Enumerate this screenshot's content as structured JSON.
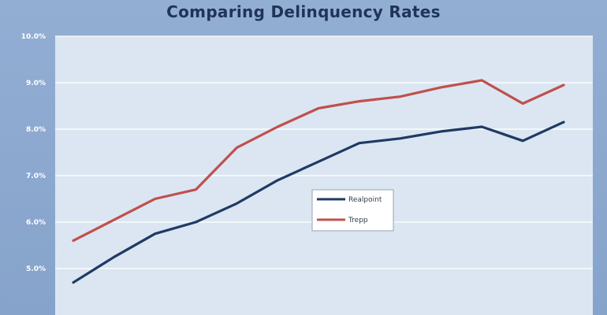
{
  "chart_data": {
    "type": "line",
    "title": "Comparing Delinquency Rates",
    "xlabel": "",
    "ylabel": "",
    "ylim": [
      4.0,
      10.0
    ],
    "yticks": [
      "5.0%",
      "6.0%",
      "7.0%",
      "8.0%",
      "9.0%",
      "10.0%"
    ],
    "ytick_values": [
      5.0,
      6.0,
      7.0,
      8.0,
      9.0,
      10.0
    ],
    "x": [
      1,
      2,
      3,
      4,
      5,
      6,
      7,
      8,
      9,
      10,
      11,
      12,
      13,
      14
    ],
    "series": [
      {
        "name": "Realpoint",
        "color": "#1f3a64",
        "values": [
          4.7,
          5.25,
          5.75,
          6.0,
          6.4,
          6.9,
          7.3,
          7.7,
          7.8,
          7.95,
          8.05,
          7.75,
          8.15,
          null
        ]
      },
      {
        "name": "Trepp",
        "color": "#c0504d",
        "values": [
          5.6,
          6.05,
          6.5,
          6.7,
          7.6,
          8.05,
          8.45,
          8.6,
          8.7,
          8.9,
          9.05,
          8.55,
          8.95,
          null
        ]
      }
    ],
    "grid": true,
    "legend": "center"
  }
}
